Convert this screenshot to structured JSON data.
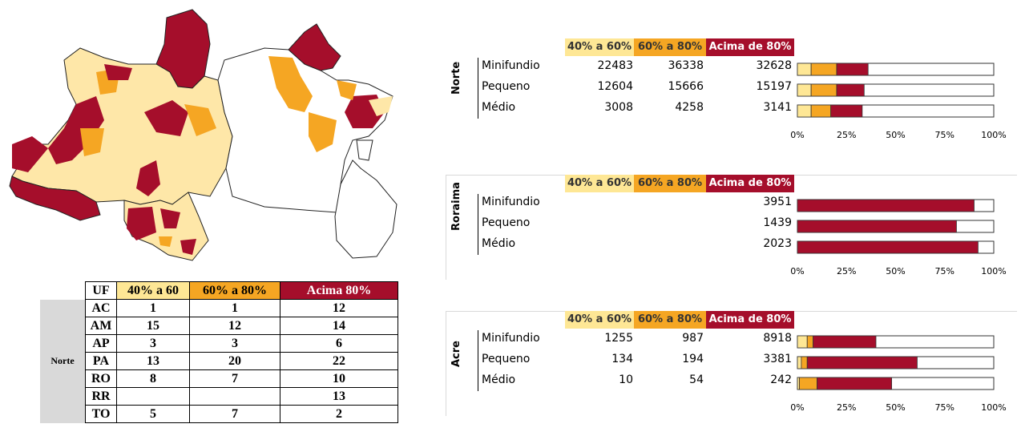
{
  "map": {
    "colors": {
      "none": "#ffffff",
      "c1": "#fee7a8",
      "c2": "#f5a623",
      "c3": "#a50e2b",
      "border": "#222222"
    }
  },
  "uf_table": {
    "headers": [
      "UF",
      "40% a 60",
      "60% a 80%",
      "Acima 80%"
    ],
    "region": "Norte",
    "rows": [
      {
        "uf": "AC",
        "c1": "1",
        "c2": "1",
        "c3": "12"
      },
      {
        "uf": "AM",
        "c1": "15",
        "c2": "12",
        "c3": "14"
      },
      {
        "uf": "AP",
        "c1": "3",
        "c2": "3",
        "c3": "6"
      },
      {
        "uf": "PA",
        "c1": "13",
        "c2": "20",
        "c3": "22"
      },
      {
        "uf": "RO",
        "c1": "8",
        "c2": "7",
        "c3": "10"
      },
      {
        "uf": "RR",
        "c1": "",
        "c2": "",
        "c3": "13"
      },
      {
        "uf": "TO",
        "c1": "5",
        "c2": "7",
        "c3": "2"
      }
    ],
    "colors": {
      "c1": "#fee795",
      "c2": "#f5a623",
      "c3": "#a50e2b"
    }
  },
  "chart_data": [
    {
      "type": "bar",
      "region": "Norte",
      "legend": [
        "40% a 60%",
        "60% a 80%",
        "Acima de 80%"
      ],
      "categories": [
        "Minifundio",
        "Pequeno",
        "Médio"
      ],
      "values_table": [
        [
          "22483",
          "36338",
          "32628"
        ],
        [
          "12604",
          "15666",
          "15197"
        ],
        [
          "3008",
          "4258",
          "3141"
        ]
      ],
      "series": [
        {
          "name": "40% a 60%",
          "color": "#fee795",
          "values": [
            0.07,
            0.07,
            0.07
          ]
        },
        {
          "name": "60% a 80%",
          "color": "#f5a623",
          "values": [
            0.13,
            0.13,
            0.1
          ]
        },
        {
          "name": "Acima de 80%",
          "color": "#a50e2b",
          "values": [
            0.16,
            0.14,
            0.16
          ]
        }
      ],
      "xticks": [
        "0%",
        "25%",
        "50%",
        "75%",
        "100%"
      ],
      "xlim": [
        0,
        1
      ]
    },
    {
      "type": "bar",
      "region": "Roraima",
      "legend": [
        "40% a 60%",
        "60% a 80%",
        "Acima de 80%"
      ],
      "categories": [
        "Minifundio",
        "Pequeno",
        "Médio"
      ],
      "values_table": [
        [
          "",
          "",
          "3951"
        ],
        [
          "",
          "",
          "1439"
        ],
        [
          "",
          "",
          "2023"
        ]
      ],
      "series": [
        {
          "name": "40% a 60%",
          "color": "#fee795",
          "values": [
            0,
            0,
            0
          ]
        },
        {
          "name": "60% a 80%",
          "color": "#f5a623",
          "values": [
            0,
            0,
            0
          ]
        },
        {
          "name": "Acima de 80%",
          "color": "#a50e2b",
          "values": [
            0.9,
            0.81,
            0.92
          ]
        }
      ],
      "xticks": [
        "0%",
        "25%",
        "50%",
        "75%",
        "100%"
      ],
      "xlim": [
        0,
        1
      ]
    },
    {
      "type": "bar",
      "region": "Acre",
      "legend": [
        "40% a 60%",
        "60% a 80%",
        "Acima de 80%"
      ],
      "categories": [
        "Minifundio",
        "Pequeno",
        "Médio"
      ],
      "values_table": [
        [
          "1255",
          "987",
          "8918"
        ],
        [
          "134",
          "194",
          "3381"
        ],
        [
          "10",
          "54",
          "242"
        ]
      ],
      "series": [
        {
          "name": "40% a 60%",
          "color": "#fee795",
          "values": [
            0.05,
            0.02,
            0.01
          ]
        },
        {
          "name": "60% a 80%",
          "color": "#f5a623",
          "values": [
            0.03,
            0.03,
            0.09
          ]
        },
        {
          "name": "Acima de 80%",
          "color": "#a50e2b",
          "values": [
            0.32,
            0.56,
            0.38
          ]
        }
      ],
      "xticks": [
        "0%",
        "25%",
        "50%",
        "75%",
        "100%"
      ],
      "xlim": [
        0,
        1
      ]
    }
  ]
}
